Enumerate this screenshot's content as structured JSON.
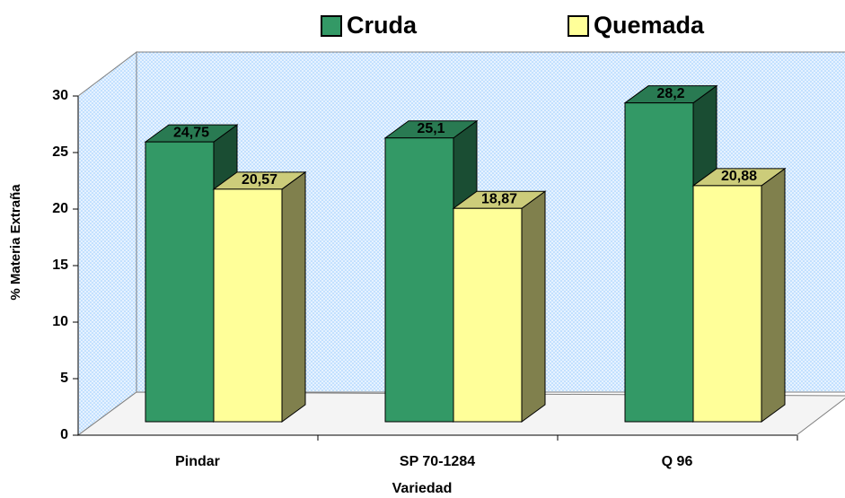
{
  "chart_data": {
    "type": "bar3d",
    "categories": [
      "Pindar",
      "SP 70-1284",
      "Q 96"
    ],
    "series": [
      {
        "name": "Cruda",
        "color": "#339966",
        "values": [
          24.75,
          25.1,
          28.2
        ],
        "value_labels": [
          "24,75",
          "25,1",
          "28,2"
        ]
      },
      {
        "name": "Quemada",
        "color": "#ffff99",
        "values": [
          20.57,
          18.87,
          20.88
        ],
        "value_labels": [
          "20,57",
          "18,87",
          "20,88"
        ]
      }
    ],
    "ylim": [
      0,
      30
    ],
    "yticks": [
      0,
      5,
      10,
      15,
      20,
      25,
      30
    ],
    "ylabel": "% Materia Extraña",
    "xlabel": "Variedad",
    "legend": "top"
  }
}
